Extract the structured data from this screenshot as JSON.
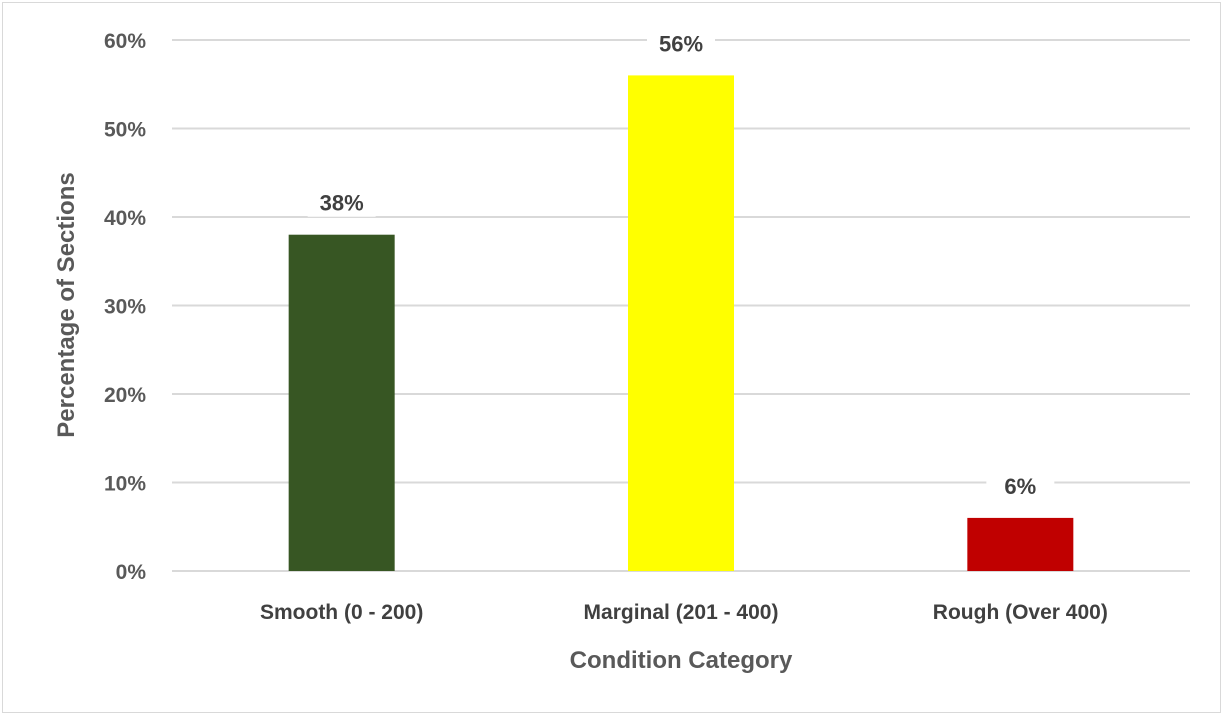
{
  "chart_data": {
    "type": "bar",
    "categories": [
      "Smooth (0 - 200)",
      "Marginal (201 - 400)",
      "Rough (Over 400)"
    ],
    "values": [
      38,
      56,
      6
    ],
    "data_labels": [
      "38%",
      "56%",
      "6%"
    ],
    "colors": [
      "#375623",
      "#FFFF00",
      "#C00000"
    ],
    "xlabel": "Condition Category",
    "ylabel": "Percentage of Sections",
    "ylim": [
      0,
      60
    ],
    "yticks": [
      0,
      10,
      20,
      30,
      40,
      50,
      60
    ],
    "ytick_labels": [
      "0%",
      "10%",
      "20%",
      "30%",
      "40%",
      "50%",
      "60%"
    ],
    "grid": true,
    "legend": "none"
  }
}
